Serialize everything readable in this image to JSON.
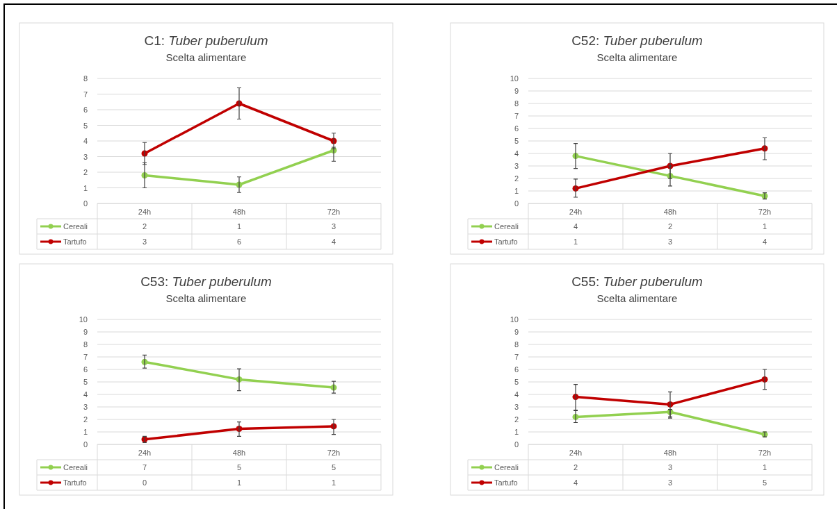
{
  "chart_data": [
    {
      "type": "line",
      "title": "C1: Tuber puberulum",
      "subtitle": "Scelta alimentare",
      "categories": [
        "24h",
        "48h",
        "72h"
      ],
      "ylim": [
        0,
        8
      ],
      "yticks": [
        0,
        1,
        2,
        3,
        4,
        5,
        6,
        7,
        8
      ],
      "grid": "y",
      "marker": "circle",
      "legend": "bottom",
      "series": [
        {
          "name": "Cereali",
          "color": "#92d050",
          "values": [
            1.8,
            1.2,
            3.4
          ],
          "errors": [
            [
              1.0,
              2.6
            ],
            [
              0.7,
              1.7
            ],
            [
              2.7,
              3.6
            ]
          ],
          "value_labels": [
            "2",
            "1",
            "3"
          ]
        },
        {
          "name": "Tartufo",
          "color": "#c00000",
          "values": [
            3.2,
            6.4,
            4.0
          ],
          "errors": [
            [
              2.5,
              3.9
            ],
            [
              5.4,
              7.4
            ],
            [
              3.5,
              4.5
            ]
          ],
          "value_labels": [
            "3",
            "6",
            "4"
          ]
        }
      ]
    },
    {
      "type": "line",
      "title": "C52: Tuber puberulum",
      "subtitle": "Scelta alimentare",
      "categories": [
        "24h",
        "48h",
        "72h"
      ],
      "ylim": [
        0,
        10
      ],
      "yticks": [
        0,
        1,
        2,
        3,
        4,
        5,
        6,
        7,
        8,
        9,
        10
      ],
      "grid": "y",
      "marker": "circle",
      "legend": "bottom",
      "series": [
        {
          "name": "Cereali",
          "color": "#92d050",
          "values": [
            3.8,
            2.2,
            0.6
          ],
          "errors": [
            [
              2.8,
              4.8
            ],
            [
              1.4,
              3.0
            ],
            [
              0.35,
              0.85
            ]
          ],
          "value_labels": [
            "4",
            "2",
            "1"
          ]
        },
        {
          "name": "Tartufo",
          "color": "#c00000",
          "values": [
            1.2,
            3.0,
            4.4
          ],
          "errors": [
            [
              0.5,
              1.95
            ],
            [
              2.0,
              4.0
            ],
            [
              3.5,
              5.25
            ]
          ],
          "value_labels": [
            "1",
            "3",
            "4"
          ]
        }
      ]
    },
    {
      "type": "line",
      "title": "C53: Tuber puberulum",
      "subtitle": "Scelta alimentare",
      "categories": [
        "24h",
        "48h",
        "72h"
      ],
      "ylim": [
        0,
        10
      ],
      "yticks": [
        0,
        1,
        2,
        3,
        4,
        5,
        6,
        7,
        8,
        9,
        10
      ],
      "grid": "y",
      "marker": "circle",
      "legend": "bottom",
      "series": [
        {
          "name": "Cereali",
          "color": "#92d050",
          "values": [
            6.6,
            5.2,
            4.55
          ],
          "errors": [
            [
              6.1,
              7.15
            ],
            [
              4.3,
              6.05
            ],
            [
              4.1,
              5.05
            ]
          ],
          "value_labels": [
            "7",
            "5",
            "5"
          ]
        },
        {
          "name": "Tartufo",
          "color": "#c00000",
          "values": [
            0.4,
            1.25,
            1.45
          ],
          "errors": [
            [
              0.15,
              0.65
            ],
            [
              0.65,
              1.8
            ],
            [
              0.8,
              2.0
            ]
          ],
          "value_labels": [
            "0",
            "1",
            "1"
          ]
        }
      ]
    },
    {
      "type": "line",
      "title": "C55: Tuber puberulum",
      "subtitle": "Scelta alimentare",
      "categories": [
        "24h",
        "48h",
        "72h"
      ],
      "ylim": [
        0,
        10
      ],
      "yticks": [
        0,
        1,
        2,
        3,
        4,
        5,
        6,
        7,
        8,
        9,
        10
      ],
      "grid": "y",
      "marker": "circle",
      "legend": "bottom",
      "series": [
        {
          "name": "Cereali",
          "color": "#92d050",
          "values": [
            2.2,
            2.6,
            0.8
          ],
          "errors": [
            [
              1.75,
              2.7
            ],
            [
              2.1,
              2.8
            ],
            [
              0.6,
              1.0
            ]
          ],
          "value_labels": [
            "2",
            "3",
            "1"
          ]
        },
        {
          "name": "Tartufo",
          "color": "#c00000",
          "values": [
            3.8,
            3.2,
            5.2
          ],
          "errors": [
            [
              2.75,
              4.8
            ],
            [
              2.2,
              4.2
            ],
            [
              4.4,
              6.0
            ]
          ],
          "value_labels": [
            "4",
            "3",
            "5"
          ]
        }
      ]
    }
  ]
}
